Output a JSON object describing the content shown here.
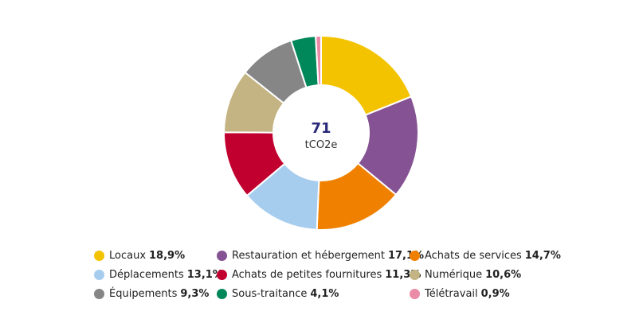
{
  "chart_data": {
    "type": "pie",
    "subtype": "donut",
    "center_value": "71",
    "center_unit": "tCO2e",
    "slices": [
      {
        "label": "Locaux",
        "value": 18.9,
        "display": "18,9%",
        "color": "#f3c300"
      },
      {
        "label": "Restauration et hébergement",
        "value": 17.1,
        "display": "17,1%",
        "color": "#855393"
      },
      {
        "label": "Achats de services",
        "value": 14.7,
        "display": "14,7%",
        "color": "#f08100"
      },
      {
        "label": "Déplacements",
        "value": 13.1,
        "display": "13,1%",
        "color": "#a7cdee"
      },
      {
        "label": "Achats de petites fournitures",
        "value": 11.3,
        "display": "11,3%",
        "color": "#c1002f"
      },
      {
        "label": "Numérique",
        "value": 10.6,
        "display": "10,6%",
        "color": "#c4b483"
      },
      {
        "label": "Équipements",
        "value": 9.3,
        "display": "9,3%",
        "color": "#868686"
      },
      {
        "label": "Sous-traitance",
        "value": 4.1,
        "display": "4,1%",
        "color": "#00875a"
      },
      {
        "label": "Télétravail",
        "value": 0.9,
        "display": "0,9%",
        "color": "#ea8ba8"
      }
    ]
  }
}
